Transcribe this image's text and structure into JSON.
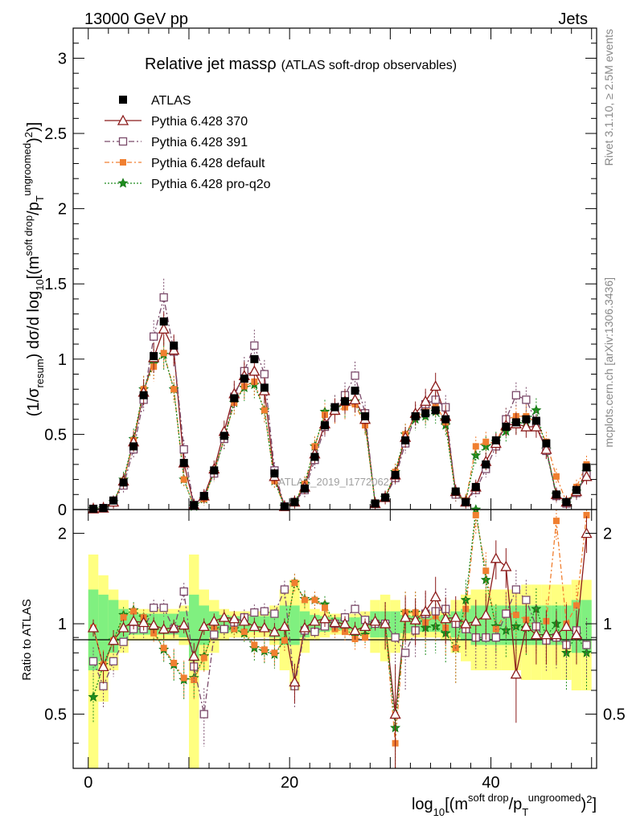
{
  "header": {
    "left": "13000 GeV pp",
    "right": "Jets"
  },
  "side_text": {
    "rivet": "Rivet 3.1.10, ≥ 2.5M events",
    "mcplots": "mcplots.cern.ch [arXiv:1306.3436]"
  },
  "watermark": "ATLAS_2019_I1772062",
  "colors": {
    "ATLAS": "#000000",
    "p370": "#8b1a1a",
    "p391": "#7a4a6a",
    "pdef": "#f07f30",
    "pq2o": "#1e8c1e",
    "band_yellow": "#ffff80",
    "band_green": "#80f080"
  },
  "chart_data": [
    {
      "type": "line",
      "title": "Relative jet massρ",
      "subtitle": "(ATLAS soft-drop observables)",
      "ylabel": "(1/σresum) dσ/d log10[(msoft drop/pTungroomed)2)]",
      "xlim": [
        -1.5,
        50.5
      ],
      "ylim": [
        0,
        3.2
      ],
      "yticks": [
        "0",
        "0.5",
        "1",
        "1.5",
        "2",
        "2.5",
        "3"
      ],
      "legend": [
        {
          "key": "ATLAS",
          "label": "ATLAS"
        },
        {
          "key": "p370",
          "label": "Pythia 6.428 370"
        },
        {
          "key": "p391",
          "label": "Pythia 6.428 391"
        },
        {
          "key": "pdef",
          "label": "Pythia 6.428 default"
        },
        {
          "key": "pq2o",
          "label": "Pythia 6.428 pro-q2o"
        }
      ],
      "x": [
        0.5,
        1.5,
        2.5,
        3.5,
        4.5,
        5.5,
        6.5,
        7.5,
        8.5,
        9.5,
        10.5,
        11.5,
        12.5,
        13.5,
        14.5,
        15.5,
        16.5,
        17.5,
        18.5,
        19.5,
        20.5,
        21.5,
        22.5,
        23.5,
        24.5,
        25.5,
        26.5,
        27.5,
        28.5,
        29.5,
        30.5,
        31.5,
        32.5,
        33.5,
        34.5,
        35.5,
        36.5,
        37.5,
        38.5,
        39.5,
        40.5,
        41.5,
        42.5,
        43.5,
        44.5,
        45.5,
        46.5,
        47.5,
        48.5,
        49.5
      ],
      "series": [
        {
          "key": "ATLAS",
          "values": [
            0.005,
            0.01,
            0.06,
            0.18,
            0.42,
            0.76,
            1.02,
            1.25,
            1.09,
            0.31,
            0.03,
            0.09,
            0.26,
            0.49,
            0.74,
            0.87,
            1.0,
            0.81,
            0.24,
            0.02,
            0.05,
            0.14,
            0.35,
            0.56,
            0.68,
            0.72,
            0.79,
            0.62,
            0.04,
            0.08,
            0.23,
            0.46,
            0.62,
            0.64,
            0.66,
            0.6,
            0.12,
            0.05,
            0.15,
            0.3,
            0.46,
            0.55,
            0.58,
            0.6,
            0.59,
            0.44,
            0.1,
            0.05,
            0.13,
            0.28
          ]
        },
        {
          "key": "p370",
          "values": [
            0.005,
            0.01,
            0.05,
            0.19,
            0.45,
            0.78,
            1.01,
            1.2,
            1.06,
            0.31,
            0.03,
            0.09,
            0.27,
            0.52,
            0.77,
            0.89,
            0.92,
            0.79,
            0.22,
            0.02,
            0.05,
            0.15,
            0.37,
            0.57,
            0.66,
            0.72,
            0.73,
            0.6,
            0.04,
            0.08,
            0.23,
            0.48,
            0.64,
            0.72,
            0.82,
            0.62,
            0.12,
            0.05,
            0.15,
            0.32,
            0.44,
            0.56,
            0.57,
            0.55,
            0.55,
            0.4,
            0.1,
            0.05,
            0.12,
            0.22
          ]
        },
        {
          "key": "p391",
          "values": [
            0.005,
            0.01,
            0.05,
            0.16,
            0.4,
            0.73,
            1.15,
            1.41,
            1.05,
            0.4,
            0.03,
            0.09,
            0.24,
            0.47,
            0.75,
            0.92,
            1.09,
            0.9,
            0.26,
            0.02,
            0.05,
            0.13,
            0.33,
            0.55,
            0.68,
            0.76,
            0.89,
            0.64,
            0.04,
            0.08,
            0.21,
            0.44,
            0.62,
            0.7,
            0.73,
            0.68,
            0.1,
            0.05,
            0.13,
            0.27,
            0.42,
            0.6,
            0.76,
            0.73,
            0.58,
            0.39,
            0.09,
            0.04,
            0.11,
            0.24
          ]
        },
        {
          "key": "pdef",
          "values": [
            0.005,
            0.01,
            0.05,
            0.19,
            0.46,
            0.8,
            0.95,
            1.04,
            0.8,
            0.2,
            0.02,
            0.07,
            0.25,
            0.47,
            0.71,
            0.82,
            0.85,
            0.66,
            0.19,
            0.02,
            0.05,
            0.17,
            0.42,
            0.63,
            0.65,
            0.68,
            0.7,
            0.56,
            0.04,
            0.08,
            0.25,
            0.5,
            0.62,
            0.65,
            0.7,
            0.58,
            0.1,
            0.06,
            0.42,
            0.45,
            0.44,
            0.6,
            0.62,
            0.62,
            0.58,
            0.45,
            0.22,
            0.05,
            0.15,
            0.3
          ]
        },
        {
          "key": "pq2o",
          "values": [
            0.005,
            0.01,
            0.05,
            0.2,
            0.47,
            0.8,
            0.97,
            1.03,
            0.8,
            0.2,
            0.02,
            0.07,
            0.25,
            0.47,
            0.71,
            0.81,
            0.83,
            0.66,
            0.19,
            0.02,
            0.05,
            0.17,
            0.42,
            0.65,
            0.68,
            0.69,
            0.72,
            0.57,
            0.04,
            0.08,
            0.25,
            0.5,
            0.6,
            0.62,
            0.65,
            0.56,
            0.1,
            0.06,
            0.36,
            0.42,
            0.45,
            0.52,
            0.57,
            0.58,
            0.66,
            0.4,
            0.1,
            0.04,
            0.12,
            0.25
          ]
        }
      ]
    },
    {
      "type": "line",
      "ylabel": "Ratio to ATLAS",
      "xlabel": "log10[(msoft drop/pTungroomed)2]",
      "xlim": [
        -1.5,
        50.5
      ],
      "ylim": [
        0.33,
        2.4
      ],
      "yticks": [
        "0.5",
        "1",
        "2"
      ],
      "xticks": [
        "0",
        "20",
        "40"
      ],
      "bands": {
        "yellow_half": [
          0.7,
          0.45,
          0.3,
          0.2,
          0.12,
          0.12,
          0.12,
          0.12,
          0.12,
          0.15,
          0.7,
          0.3,
          0.2,
          0.12,
          0.1,
          0.1,
          0.1,
          0.1,
          0.15,
          0.3,
          0.4,
          0.2,
          0.12,
          0.1,
          0.08,
          0.08,
          0.08,
          0.1,
          0.2,
          0.25,
          0.2,
          0.12,
          0.1,
          0.1,
          0.1,
          0.12,
          0.2,
          0.25,
          0.3,
          0.3,
          0.3,
          0.3,
          0.3,
          0.35,
          0.35,
          0.35,
          0.35,
          0.35,
          0.4,
          0.4
        ],
        "green_half": [
          0.3,
          0.25,
          0.2,
          0.12,
          0.08,
          0.08,
          0.08,
          0.08,
          0.08,
          0.1,
          0.25,
          0.15,
          0.1,
          0.07,
          0.06,
          0.06,
          0.06,
          0.06,
          0.1,
          0.15,
          0.15,
          0.1,
          0.07,
          0.06,
          0.05,
          0.05,
          0.05,
          0.06,
          0.1,
          0.1,
          0.1,
          0.07,
          0.06,
          0.06,
          0.06,
          0.07,
          0.1,
          0.12,
          0.15,
          0.15,
          0.15,
          0.15,
          0.15,
          0.15,
          0.15,
          0.15,
          0.15,
          0.15,
          0.2,
          0.2
        ]
      },
      "series": [
        {
          "key": "p370",
          "values": [
            0.97,
            0.72,
            0.88,
            0.97,
            1.02,
            1.01,
            0.99,
            0.96,
            0.97,
            0.99,
            0.78,
            0.98,
            1.02,
            1.05,
            1.04,
            1.02,
            0.98,
            0.97,
            0.94,
            0.98,
            0.64,
            0.97,
            1.02,
            1.04,
            1.01,
            1.0,
            0.95,
            0.98,
            1.02,
            1.0,
            0.5,
            1.05,
            1.03,
            1.1,
            1.23,
            1.04,
            1.05,
            1.0,
            1.02,
            1.07,
            1.65,
            1.55,
            0.68,
            0.98,
            0.92,
            0.92,
            0.92,
            0.98,
            0.92,
            2.0
          ]
        },
        {
          "key": "p391",
          "values": [
            0.75,
            0.62,
            0.75,
            0.87,
            0.96,
            0.96,
            1.13,
            1.13,
            0.96,
            1.28,
            0.72,
            0.5,
            0.92,
            0.96,
            1.01,
            1.05,
            1.09,
            1.1,
            1.08,
            1.3,
            0.62,
            0.95,
            0.94,
            0.98,
            1.0,
            1.05,
            1.12,
            1.03,
            1.0,
            1.0,
            0.9,
            0.8,
            0.95,
            1.08,
            1.1,
            1.12,
            1.0,
            0.96,
            0.9,
            0.9,
            0.9,
            1.08,
            1.3,
            1.2,
            0.98,
            0.88,
            0.9,
            0.85,
            0.95,
            0.85
          ]
        },
        {
          "key": "pdef",
          "values": [
            0.97,
            0.73,
            0.88,
            1.05,
            1.1,
            1.05,
            0.93,
            0.83,
            0.74,
            0.66,
            0.65,
            0.77,
            0.96,
            0.96,
            0.96,
            0.94,
            0.85,
            0.82,
            0.8,
            0.88,
            1.37,
            1.2,
            1.2,
            1.13,
            0.96,
            0.94,
            0.89,
            0.9,
            1.0,
            1.0,
            0.4,
            1.09,
            1.09,
            1.01,
            1.06,
            0.97,
            0.83,
            1.12,
            2.3,
            1.5,
            0.96,
            1.09,
            1.07,
            1.03,
            0.98,
            1.02,
            2.2,
            1.0,
            1.15,
            2.3
          ]
        },
        {
          "key": "pq2o",
          "values": [
            0.57,
            0.73,
            0.88,
            1.07,
            1.11,
            1.05,
            0.95,
            0.82,
            0.73,
            0.65,
            0.66,
            0.78,
            0.96,
            0.96,
            0.96,
            0.93,
            0.83,
            0.81,
            0.79,
            0.88,
            1.37,
            1.21,
            1.2,
            1.16,
            1.0,
            0.96,
            0.91,
            0.92,
            1.0,
            1.0,
            0.45,
            1.09,
            1.09,
            0.97,
            0.98,
            0.93,
            0.83,
            1.2,
            2.4,
            1.4,
            0.98,
            0.95,
            0.98,
            0.97,
            1.12,
            0.91,
            1.0,
            0.8,
            0.92,
            0.8
          ]
        }
      ]
    }
  ]
}
